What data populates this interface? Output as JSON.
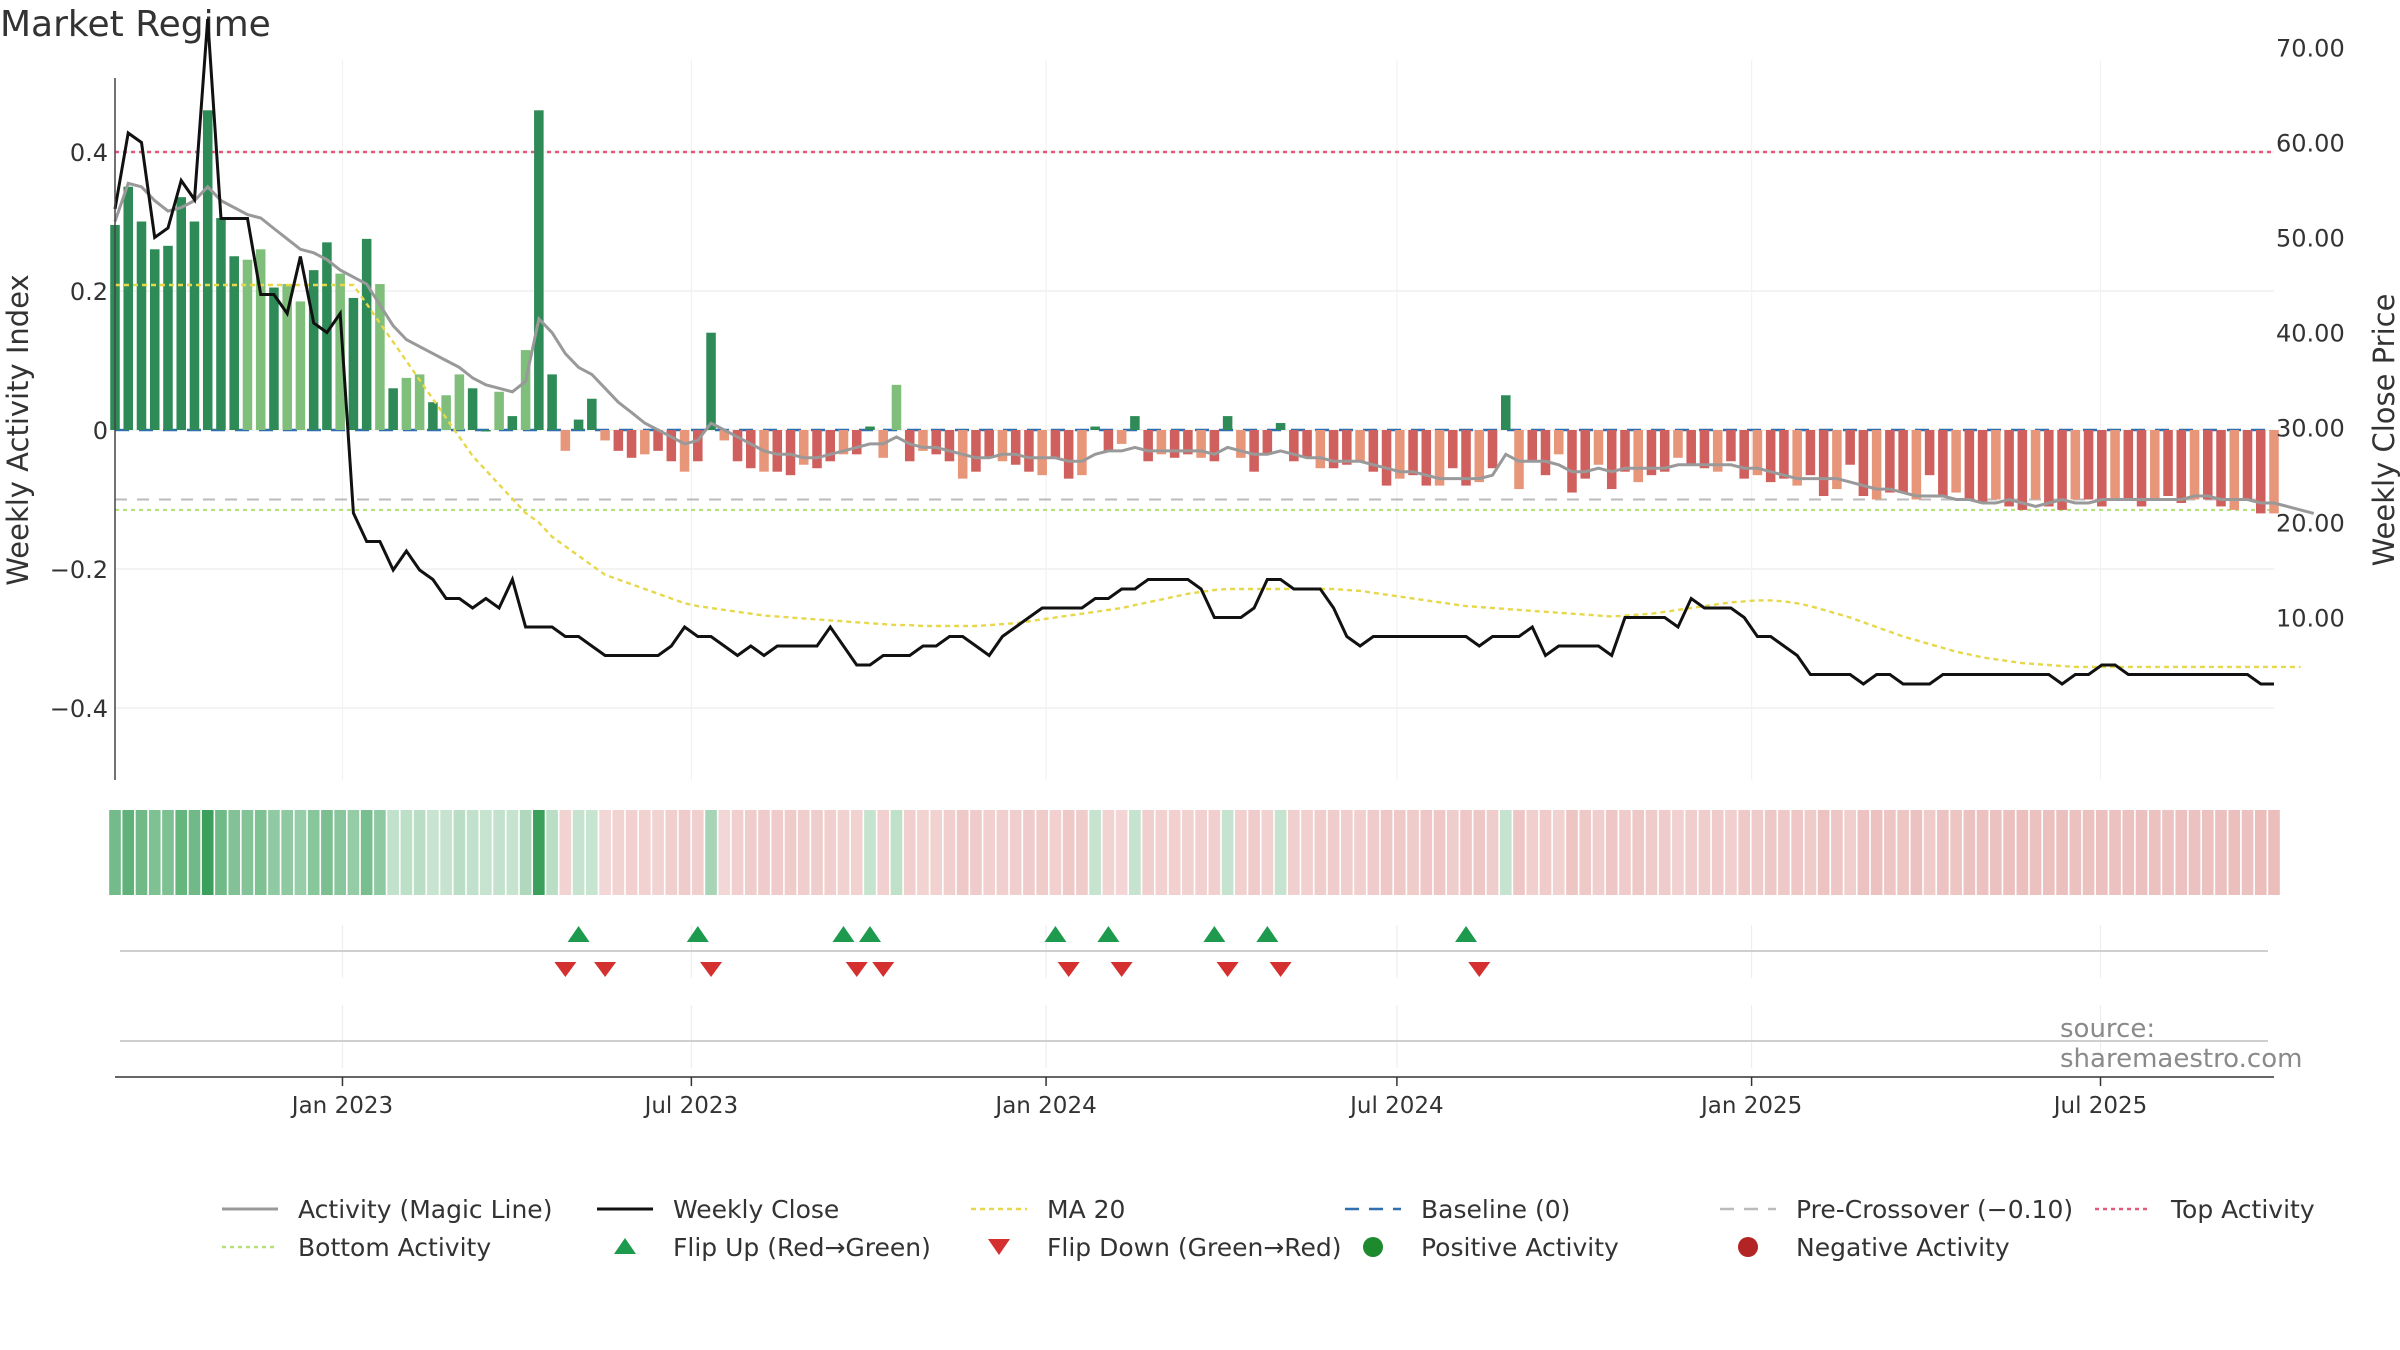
{
  "chart_data": {
    "type": "bar",
    "title": "Market Regime",
    "source": "source: sharemaestro.com",
    "colors": {
      "strong_green": "#2e8b57",
      "light_green": "#7fbf7b",
      "strong_red": "#d0605e",
      "light_red": "#e8967a",
      "magic_line": "#999999",
      "weekly_close": "#111111",
      "ma20": "#e6d84a",
      "baseline": "#2f6fb0",
      "pre_crossover": "#bbbbbb",
      "top_activity": "#e0587a",
      "bottom_activity": "#b5e07a",
      "flip_up": "#1e9a4e",
      "flip_down": "#d43030"
    },
    "x_axis": {
      "start": "2022-09-05",
      "end": "2025-09-29",
      "ticks": [
        {
          "date": "2023-01-01",
          "label": "Jan 2023"
        },
        {
          "date": "2023-07-01",
          "label": "Jul 2023"
        },
        {
          "date": "2024-01-01",
          "label": "Jan 2024"
        },
        {
          "date": "2024-07-01",
          "label": "Jul 2024"
        },
        {
          "date": "2025-01-01",
          "label": "Jan 2025"
        },
        {
          "date": "2025-07-01",
          "label": "Jul 2025"
        }
      ]
    },
    "y_left": {
      "label": "Weekly Activity Index",
      "ylim": [
        -0.5,
        0.5
      ],
      "ticks": [
        {
          "v": 0.4,
          "label": "0.4"
        },
        {
          "v": 0.2,
          "label": "0.2"
        },
        {
          "v": 0,
          "label": "0"
        },
        {
          "v": -0.2,
          "label": "−0.2"
        },
        {
          "v": -0.4,
          "label": "−0.4"
        }
      ]
    },
    "y_right": {
      "label": "Weekly Close Price",
      "ylim": [
        3.5,
        76.5
      ],
      "ticks": [
        {
          "v": 70,
          "label": "70.00"
        },
        {
          "v": 60,
          "label": "60.00"
        },
        {
          "v": 50,
          "label": "50.00"
        },
        {
          "v": 40,
          "label": "40.00"
        },
        {
          "v": 30,
          "label": "30.00"
        },
        {
          "v": 20,
          "label": "20.00"
        },
        {
          "v": 10,
          "label": "10.00"
        }
      ]
    },
    "levels": {
      "top_activity": 0.4,
      "bottom_activity": -0.115,
      "pre_crossover": -0.1,
      "baseline": 0
    },
    "activity_values": [
      0.295,
      0.35,
      0.3,
      0.26,
      0.265,
      0.335,
      0.3,
      0.46,
      0.305,
      0.25,
      0.245,
      0.26,
      0.205,
      0.21,
      0.185,
      0.23,
      0.27,
      0.225,
      0.19,
      0.275,
      0.21,
      0.06,
      0.075,
      0.08,
      0.04,
      0.05,
      0.08,
      0.06,
      0.0,
      0.055,
      0.02,
      0.115,
      0.46,
      0.08,
      -0.03,
      0.015,
      0.045,
      -0.015,
      -0.03,
      -0.04,
      -0.035,
      -0.03,
      -0.045,
      -0.06,
      -0.045,
      0.14,
      -0.015,
      -0.045,
      -0.055,
      -0.06,
      -0.06,
      -0.065,
      -0.05,
      -0.055,
      -0.045,
      -0.035,
      -0.035,
      0.005,
      -0.04,
      0.065,
      -0.045,
      -0.03,
      -0.035,
      -0.045,
      -0.07,
      -0.06,
      -0.04,
      -0.045,
      -0.05,
      -0.06,
      -0.065,
      -0.04,
      -0.07,
      -0.065,
      0.005,
      -0.03,
      -0.02,
      0.02,
      -0.045,
      -0.035,
      -0.04,
      -0.035,
      -0.04,
      -0.045,
      0.02,
      -0.04,
      -0.06,
      -0.035,
      0.01,
      -0.045,
      -0.04,
      -0.055,
      -0.055,
      -0.05,
      -0.045,
      -0.06,
      -0.08,
      -0.07,
      -0.065,
      -0.08,
      -0.08,
      -0.055,
      -0.08,
      -0.075,
      -0.055,
      0.05,
      -0.085,
      -0.045,
      -0.065,
      -0.035,
      -0.09,
      -0.07,
      -0.05,
      -0.085,
      -0.06,
      -0.075,
      -0.065,
      -0.06,
      -0.04,
      -0.05,
      -0.055,
      -0.06,
      -0.045,
      -0.07,
      -0.065,
      -0.075,
      -0.07,
      -0.08,
      -0.065,
      -0.095,
      -0.085,
      -0.05,
      -0.095,
      -0.1,
      -0.09,
      -0.09,
      -0.1,
      -0.065,
      -0.095,
      -0.09,
      -0.1,
      -0.105,
      -0.1,
      -0.11,
      -0.115,
      -0.1,
      -0.11,
      -0.115,
      -0.1,
      -0.1,
      -0.11,
      -0.1,
      -0.1,
      -0.11,
      -0.1,
      -0.095,
      -0.105,
      -0.1,
      -0.1,
      -0.11,
      -0.115,
      -0.1,
      -0.12,
      -0.12
    ],
    "magic_line": [
      0.3,
      0.355,
      0.35,
      0.33,
      0.315,
      0.32,
      0.33,
      0.35,
      0.33,
      0.32,
      0.31,
      0.305,
      0.29,
      0.275,
      0.26,
      0.255,
      0.245,
      0.23,
      0.22,
      0.21,
      0.18,
      0.15,
      0.13,
      0.12,
      0.11,
      0.1,
      0.09,
      0.075,
      0.065,
      0.06,
      0.055,
      0.07,
      0.16,
      0.14,
      0.11,
      0.09,
      0.08,
      0.06,
      0.04,
      0.025,
      0.01,
      0.0,
      -0.01,
      -0.02,
      -0.015,
      0.01,
      0.0,
      -0.01,
      -0.02,
      -0.03,
      -0.035,
      -0.035,
      -0.04,
      -0.04,
      -0.035,
      -0.03,
      -0.025,
      -0.02,
      -0.02,
      -0.01,
      -0.02,
      -0.025,
      -0.025,
      -0.03,
      -0.035,
      -0.04,
      -0.04,
      -0.035,
      -0.035,
      -0.04,
      -0.04,
      -0.04,
      -0.045,
      -0.045,
      -0.035,
      -0.03,
      -0.03,
      -0.025,
      -0.03,
      -0.03,
      -0.03,
      -0.03,
      -0.03,
      -0.035,
      -0.025,
      -0.03,
      -0.035,
      -0.035,
      -0.03,
      -0.035,
      -0.04,
      -0.04,
      -0.045,
      -0.045,
      -0.045,
      -0.05,
      -0.055,
      -0.06,
      -0.06,
      -0.065,
      -0.07,
      -0.07,
      -0.07,
      -0.07,
      -0.065,
      -0.035,
      -0.045,
      -0.045,
      -0.045,
      -0.05,
      -0.06,
      -0.06,
      -0.055,
      -0.06,
      -0.055,
      -0.055,
      -0.055,
      -0.055,
      -0.05,
      -0.05,
      -0.05,
      -0.05,
      -0.05,
      -0.055,
      -0.055,
      -0.06,
      -0.065,
      -0.07,
      -0.07,
      -0.07,
      -0.07,
      -0.075,
      -0.08,
      -0.085,
      -0.085,
      -0.09,
      -0.095,
      -0.095,
      -0.095,
      -0.1,
      -0.1,
      -0.105,
      -0.105,
      -0.1,
      -0.105,
      -0.11,
      -0.105,
      -0.1,
      -0.105,
      -0.105,
      -0.1,
      -0.1,
      -0.1,
      -0.1,
      -0.1,
      -0.1,
      -0.1,
      -0.095,
      -0.095,
      -0.1,
      -0.1,
      -0.1,
      -0.105,
      -0.105,
      -0.11,
      -0.115,
      -0.12
    ],
    "weekly_close": [
      53,
      61,
      60,
      50,
      51,
      56,
      54,
      73,
      52,
      52,
      52,
      44,
      44,
      42,
      48,
      41,
      40,
      42,
      21,
      18,
      18,
      15,
      17,
      15,
      14,
      12,
      12,
      11,
      12,
      11,
      14,
      9,
      9,
      9,
      8,
      8,
      7,
      6,
      6,
      6,
      6,
      6,
      7,
      9,
      8,
      8,
      7,
      6,
      7,
      6,
      7,
      7,
      7,
      7,
      9,
      7,
      5,
      5,
      6,
      6,
      6,
      7,
      7,
      8,
      8,
      7,
      6,
      8,
      9,
      10,
      11,
      11,
      11,
      11,
      12,
      12,
      13,
      13,
      14,
      14,
      14,
      14,
      13,
      10,
      10,
      10,
      11,
      14,
      14,
      13,
      13,
      13,
      11,
      8,
      7,
      8,
      8,
      8,
      8,
      8,
      8,
      8,
      8,
      7,
      8,
      8,
      8,
      9,
      6,
      7,
      7,
      7,
      7,
      6,
      10,
      10,
      10,
      10,
      9,
      12,
      11,
      11,
      11,
      10,
      8,
      8,
      7,
      6,
      4,
      4,
      4,
      4,
      3,
      4,
      4,
      3,
      3,
      3,
      4,
      4,
      4,
      4,
      4,
      4,
      4,
      4,
      4,
      3,
      4,
      4,
      5,
      5,
      4,
      4,
      4,
      4,
      4,
      4,
      4,
      4,
      4,
      4,
      3,
      3
    ],
    "ma20": [
      45,
      45,
      45,
      45,
      45,
      45,
      45,
      45,
      45,
      45,
      45,
      45,
      45,
      45,
      45,
      45,
      45,
      45,
      45,
      43,
      41,
      39,
      37,
      35,
      33,
      31,
      29,
      27,
      25.5,
      24,
      22.5,
      21,
      20,
      18.5,
      17.5,
      16.5,
      15.5,
      14.5,
      14,
      13.5,
      13,
      12.5,
      12,
      11.5,
      11.2,
      11,
      10.8,
      10.6,
      10.4,
      10.2,
      10.1,
      10,
      9.9,
      9.8,
      9.7,
      9.6,
      9.5,
      9.4,
      9.3,
      9.2,
      9.2,
      9.1,
      9.1,
      9.1,
      9.1,
      9.1,
      9.2,
      9.3,
      9.4,
      9.6,
      9.8,
      10,
      10.2,
      10.4,
      10.6,
      10.8,
      11,
      11.3,
      11.6,
      11.9,
      12.2,
      12.5,
      12.7,
      12.9,
      13,
      13,
      13,
      13,
      13,
      13,
      13,
      13,
      13,
      12.9,
      12.8,
      12.6,
      12.4,
      12.2,
      12,
      11.8,
      11.6,
      11.4,
      11.2,
      11.1,
      11,
      10.9,
      10.8,
      10.7,
      10.6,
      10.5,
      10.4,
      10.3,
      10.2,
      10.1,
      10.2,
      10.3,
      10.4,
      10.6,
      10.8,
      11,
      11.2,
      11.4,
      11.6,
      11.7,
      11.8,
      11.8,
      11.7,
      11.5,
      11.2,
      10.8,
      10.4,
      10,
      9.5,
      9,
      8.5,
      8,
      7.6,
      7.2,
      6.8,
      6.4,
      6.1,
      5.8,
      5.6,
      5.4,
      5.2,
      5.1,
      5,
      4.9,
      4.8,
      4.8,
      4.8,
      4.8,
      4.8,
      4.8,
      4.8,
      4.8,
      4.8,
      4.8,
      4.8,
      4.8,
      4.8,
      4.8,
      4.8,
      4.8,
      4.8,
      4.8
    ],
    "flip_up_weeks": [
      35,
      44,
      55,
      57,
      71,
      75,
      83,
      87,
      102
    ],
    "flip_down_weeks": [
      34,
      37,
      45,
      56,
      58,
      72,
      76,
      84,
      88,
      103
    ],
    "legend": [
      {
        "key": "magic",
        "label": "Activity (Magic Line)"
      },
      {
        "key": "close",
        "label": "Weekly Close"
      },
      {
        "key": "ma20",
        "label": "MA 20"
      },
      {
        "key": "baseline",
        "label": "Baseline (0)"
      },
      {
        "key": "pre",
        "label": "Pre-Crossover (−0.10)"
      },
      {
        "key": "top",
        "label": "Top Activity"
      },
      {
        "key": "bottom",
        "label": "Bottom Activity"
      },
      {
        "key": "flipup",
        "label": "Flip Up (Red→Green)"
      },
      {
        "key": "flipdown",
        "label": "Flip Down (Green→Red)"
      },
      {
        "key": "pos",
        "label": "Positive Activity"
      },
      {
        "key": "neg",
        "label": "Negative Activity"
      }
    ]
  }
}
